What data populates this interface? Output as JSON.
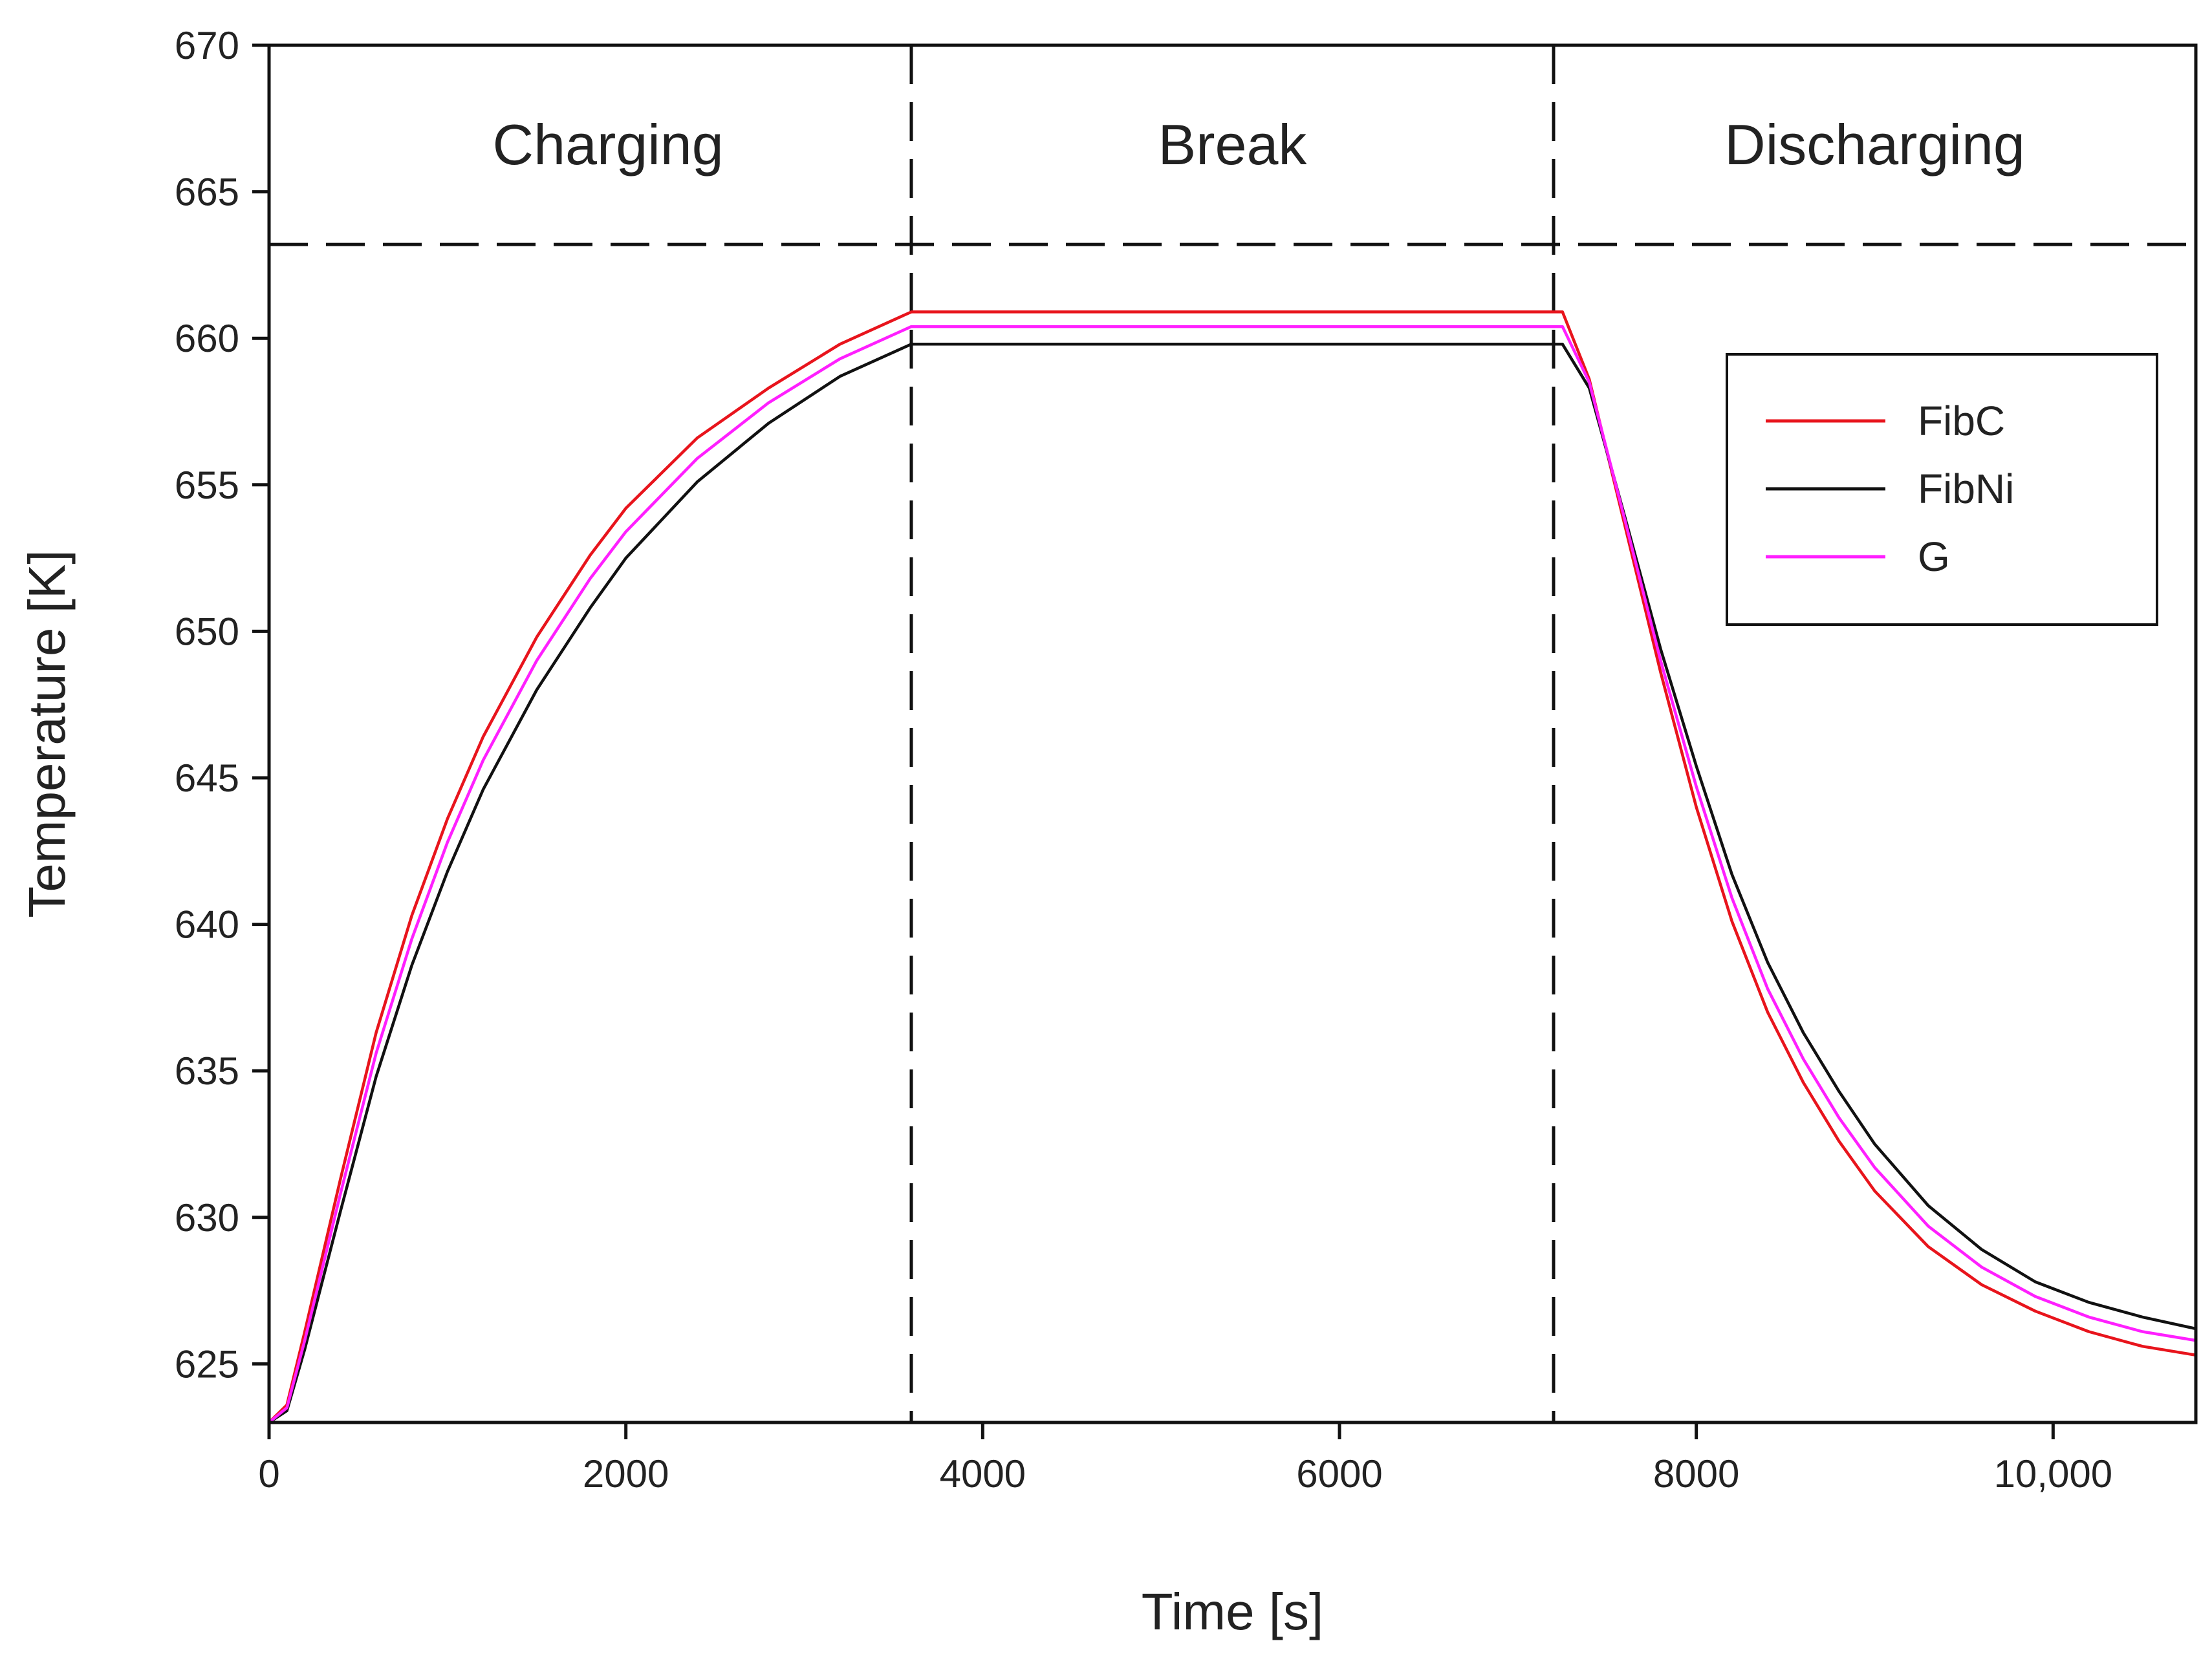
{
  "chart_data": {
    "type": "line",
    "title": "",
    "xlabel": "Time [s]",
    "ylabel": "Temperature [K]",
    "xlim": [
      0,
      10800
    ],
    "ylim": [
      623,
      670
    ],
    "xticks": [
      0,
      2000,
      4000,
      6000,
      8000,
      10000
    ],
    "xtick_labels": [
      "0",
      "2000",
      "4000",
      "6000",
      "8000",
      "10,000"
    ],
    "yticks": [
      625,
      630,
      635,
      640,
      645,
      650,
      655,
      660,
      665,
      670
    ],
    "ytick_labels": [
      "625",
      "630",
      "635",
      "640",
      "645",
      "650",
      "655",
      "660",
      "665",
      "670"
    ],
    "phase_dividers": [
      3600,
      7200
    ],
    "phase_line_y": 663.2,
    "phases": [
      {
        "label": "Charging",
        "x": 1900
      },
      {
        "label": "Break",
        "x": 5400
      },
      {
        "label": "Discharging",
        "x": 9000
      }
    ],
    "legend_position": "top-right",
    "series": [
      {
        "name": "FibC",
        "color": "#e8141c",
        "x": [
          0,
          100,
          200,
          400,
          600,
          800,
          1000,
          1200,
          1500,
          1800,
          2000,
          2400,
          2800,
          3200,
          3600,
          7200,
          7250,
          7400,
          7600,
          7800,
          8000,
          8200,
          8400,
          8600,
          8800,
          9000,
          9300,
          9600,
          9900,
          10200,
          10500,
          10800
        ],
        "y": [
          623,
          623.6,
          626.1,
          631.3,
          636.3,
          640.3,
          643.6,
          646.4,
          649.8,
          652.6,
          654.2,
          656.6,
          658.3,
          659.8,
          660.9,
          660.9,
          660.9,
          658.6,
          653.6,
          648.6,
          644.0,
          640.1,
          637.0,
          634.6,
          632.6,
          630.9,
          629.0,
          627.7,
          626.8,
          626.1,
          625.6,
          625.3
        ]
      },
      {
        "name": "FibNi",
        "color": "#111111",
        "x": [
          0,
          100,
          200,
          400,
          600,
          800,
          1000,
          1200,
          1500,
          1800,
          2000,
          2400,
          2800,
          3200,
          3600,
          7200,
          7250,
          7400,
          7600,
          7800,
          8000,
          8200,
          8400,
          8600,
          8800,
          9000,
          9300,
          9600,
          9900,
          10200,
          10500,
          10800
        ],
        "y": [
          623,
          623.4,
          625.5,
          630.2,
          634.8,
          638.6,
          641.8,
          644.6,
          648.0,
          650.8,
          652.5,
          655.1,
          657.1,
          658.7,
          659.8,
          659.8,
          659.8,
          658.3,
          653.9,
          649.4,
          645.4,
          641.7,
          638.7,
          636.3,
          634.3,
          632.5,
          630.4,
          628.9,
          627.8,
          627.1,
          626.6,
          626.2
        ]
      },
      {
        "name": "G",
        "color": "#ff1fff",
        "x": [
          0,
          100,
          200,
          400,
          600,
          800,
          1000,
          1200,
          1500,
          1800,
          2000,
          2400,
          2800,
          3200,
          3600,
          7200,
          7250,
          7400,
          7600,
          7800,
          8000,
          8200,
          8400,
          8600,
          8800,
          9000,
          9300,
          9600,
          9900,
          10200,
          10500,
          10800
        ],
        "y": [
          623,
          623.5,
          625.8,
          630.8,
          635.6,
          639.5,
          642.8,
          645.6,
          649.0,
          651.8,
          653.4,
          655.9,
          657.8,
          659.3,
          660.4,
          660.4,
          660.4,
          658.5,
          653.8,
          649.0,
          644.7,
          640.9,
          637.8,
          635.4,
          633.4,
          631.7,
          629.7,
          628.3,
          627.3,
          626.6,
          626.1,
          625.8
        ]
      }
    ]
  }
}
